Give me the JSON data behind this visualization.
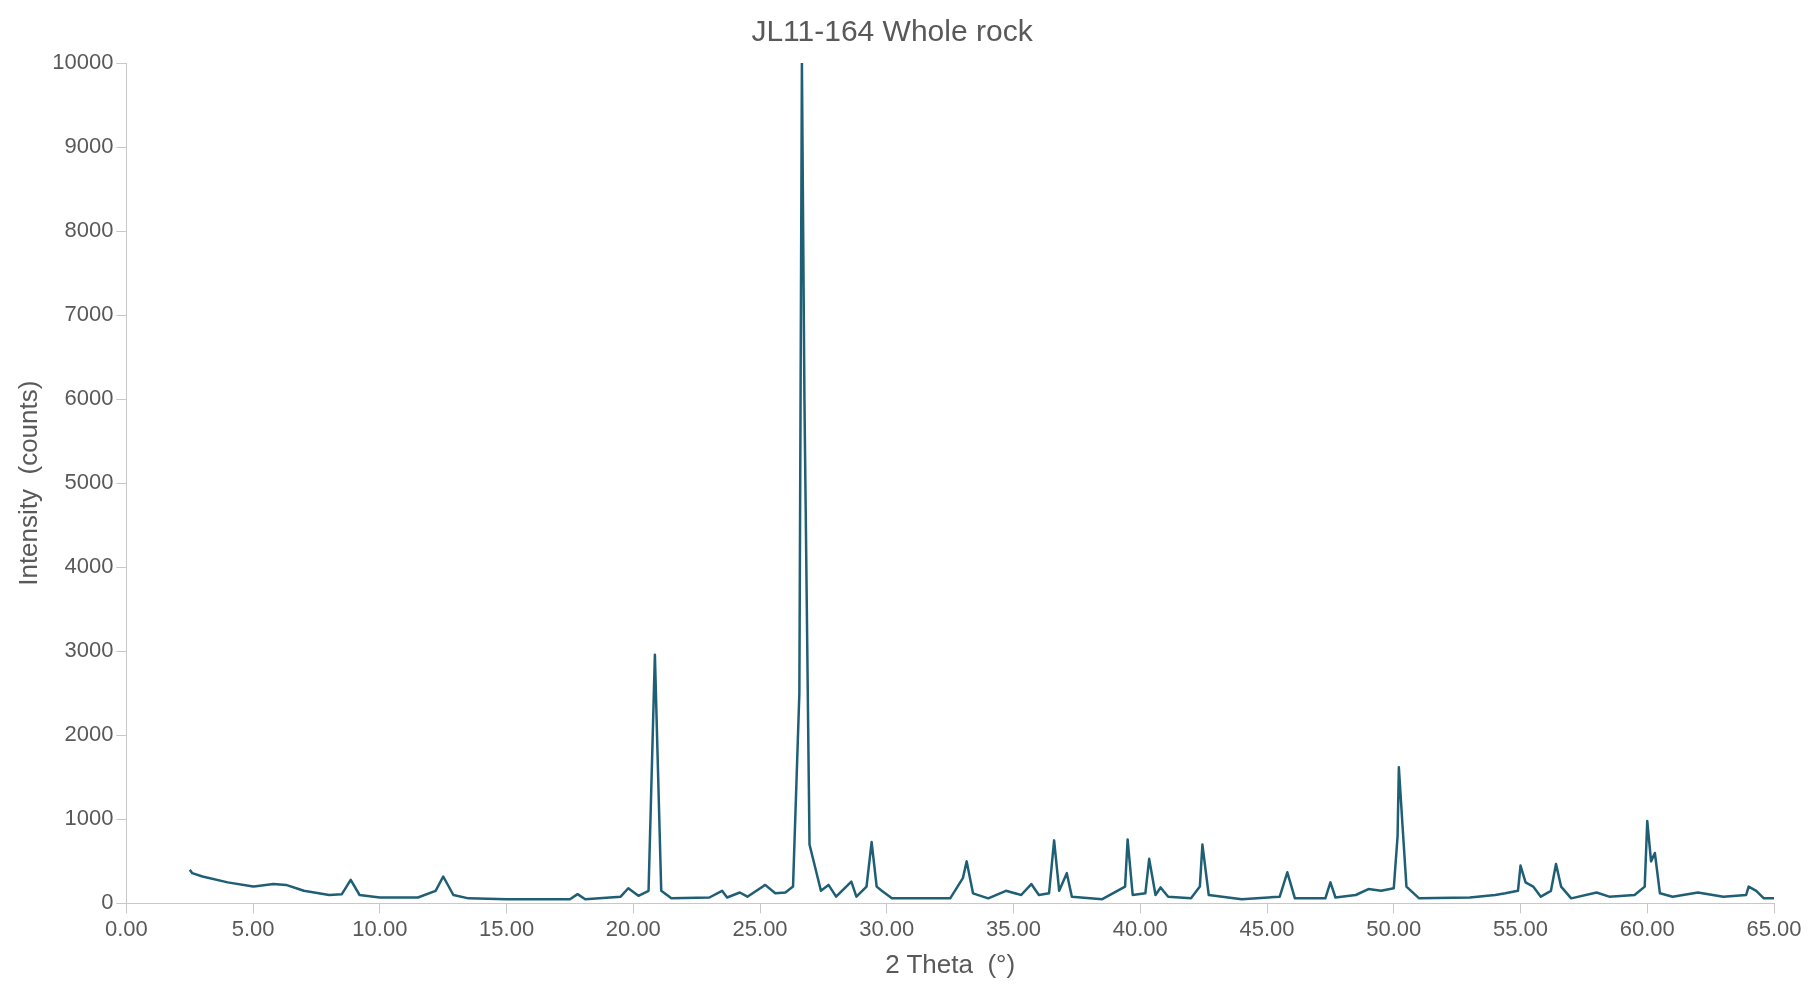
{
  "chart_data": {
    "type": "line",
    "title": "JL11-164 Whole rock",
    "xlabel": "2 Theta  (°)",
    "ylabel": "Intensity  (counts)",
    "x": [
      2.5,
      2.6,
      3,
      4,
      5,
      5.8,
      6.3,
      7,
      8,
      8.5,
      8.85,
      9.2,
      10,
      11.5,
      12.2,
      12.5,
      12.9,
      13.5,
      15,
      17.5,
      17.8,
      18.1,
      19.5,
      19.8,
      20.2,
      20.6,
      20.85,
      21.1,
      21.5,
      23,
      23.5,
      23.7,
      24.2,
      24.5,
      25.2,
      25.6,
      26,
      26.3,
      26.55,
      26.65,
      26.75,
      26.95,
      27.4,
      27.7,
      28,
      28.6,
      28.8,
      29.2,
      29.4,
      29.6,
      29.8,
      30.2,
      32.5,
      33,
      33.15,
      33.4,
      34,
      34.7,
      35.3,
      35.7,
      36,
      36.4,
      36.6,
      36.8,
      37.1,
      37.3,
      38.5,
      39.4,
      39.5,
      39.7,
      40.2,
      40.35,
      40.6,
      40.8,
      41.1,
      42,
      42.35,
      42.45,
      42.7,
      44,
      45.5,
      45.8,
      46.1,
      47.3,
      47.5,
      47.7,
      48.5,
      49,
      49.5,
      50,
      50.15,
      50.2,
      50.35,
      50.5,
      51,
      53,
      54,
      54.4,
      54.9,
      55,
      55.2,
      55.5,
      55.8,
      56.2,
      56.4,
      56.6,
      57,
      58,
      58.5,
      59.5,
      59.9,
      60,
      60.15,
      60.3,
      60.5,
      61,
      62,
      63,
      63.9,
      64,
      64.3,
      64.6,
      65
    ],
    "series": [
      {
        "color": "#1f5f75",
        "values": [
          400,
          360,
          320,
          250,
          200,
          230,
          220,
          150,
          100,
          110,
          280,
          100,
          70,
          70,
          150,
          320,
          100,
          60,
          50,
          50,
          110,
          50,
          80,
          180,
          90,
          150,
          2960,
          150,
          60,
          70,
          150,
          70,
          130,
          80,
          220,
          120,
          130,
          200,
          2500,
          10000,
          6000,
          700,
          150,
          220,
          80,
          260,
          80,
          200,
          730,
          200,
          150,
          60,
          60,
          300,
          500,
          120,
          60,
          150,
          100,
          230,
          100,
          120,
          750,
          150,
          360,
          80,
          50,
          200,
          760,
          100,
          120,
          530,
          100,
          190,
          80,
          60,
          200,
          700,
          100,
          50,
          80,
          370,
          60,
          60,
          250,
          70,
          100,
          170,
          150,
          180,
          800,
          1620,
          900,
          200,
          60,
          70,
          100,
          120,
          150,
          450,
          250,
          200,
          80,
          150,
          470,
          200,
          60,
          130,
          80,
          100,
          200,
          980,
          500,
          600,
          120,
          80,
          130,
          80,
          100,
          200,
          150,
          60,
          60
        ]
      }
    ],
    "xlim": [
      0,
      65
    ],
    "xticks": [
      {
        "value": 0,
        "label": "0.00"
      },
      {
        "value": 5,
        "label": "5.00"
      },
      {
        "value": 10,
        "label": "10.00"
      },
      {
        "value": 15,
        "label": "15.00"
      },
      {
        "value": 20,
        "label": "20.00"
      },
      {
        "value": 25,
        "label": "25.00"
      },
      {
        "value": 30,
        "label": "30.00"
      },
      {
        "value": 35,
        "label": "35.00"
      },
      {
        "value": 40,
        "label": "40.00"
      },
      {
        "value": 45,
        "label": "45.00"
      },
      {
        "value": 50,
        "label": "50.00"
      },
      {
        "value": 55,
        "label": "55.00"
      },
      {
        "value": 60,
        "label": "60.00"
      },
      {
        "value": 65,
        "label": "65.00"
      }
    ],
    "ylim": [
      0,
      10000
    ],
    "yticks": [
      0,
      1000,
      2000,
      3000,
      4000,
      5000,
      6000,
      7000,
      8000,
      9000,
      10000
    ],
    "grid": false,
    "legend": false,
    "marker": "none",
    "line_style": "solid"
  }
}
